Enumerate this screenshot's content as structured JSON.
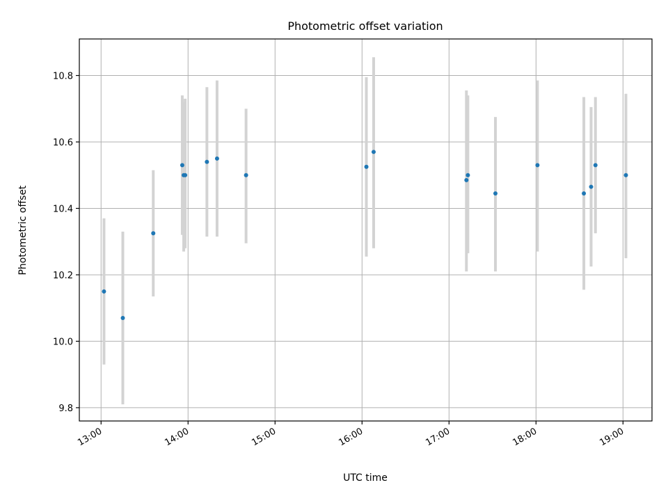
{
  "chart_data": {
    "type": "scatter",
    "title": "Photometric offset variation",
    "xlabel": "UTC time",
    "ylabel": "Photometric offset",
    "x_tick_labels": [
      "13:00",
      "14:00",
      "15:00",
      "16:00",
      "17:00",
      "18:00",
      "19:00"
    ],
    "y_tick_labels": [
      "9.8",
      "10.0",
      "10.2",
      "10.4",
      "10.6",
      "10.8"
    ],
    "xlim": [
      "12:45",
      "19:20"
    ],
    "ylim": [
      9.76,
      10.91
    ],
    "grid": true,
    "point_color": "#1f77b4",
    "errorbar_color": "#d3d3d3",
    "series": [
      {
        "x": [
          "13:02",
          "13:15",
          "13:36",
          "13:56",
          "13:57",
          "13:58",
          "14:13",
          "14:20",
          "14:40",
          "16:03",
          "16:08",
          "17:12",
          "17:13",
          "17:32",
          "18:01",
          "18:33",
          "18:38",
          "18:41",
          "19:02"
        ],
        "y": [
          10.15,
          10.07,
          10.325,
          10.53,
          10.5,
          10.5,
          10.54,
          10.55,
          10.5,
          10.525,
          10.57,
          10.485,
          10.5,
          10.445,
          10.53,
          10.445,
          10.465,
          10.53,
          10.5
        ],
        "yerr_low": [
          9.93,
          9.81,
          10.135,
          10.32,
          10.27,
          10.28,
          10.315,
          10.315,
          10.295,
          10.255,
          10.28,
          10.21,
          10.265,
          10.21,
          10.27,
          10.155,
          10.225,
          10.325,
          10.25
        ],
        "yerr_high": [
          10.37,
          10.33,
          10.515,
          10.74,
          10.72,
          10.73,
          10.765,
          10.785,
          10.7,
          10.795,
          10.855,
          10.755,
          10.74,
          10.675,
          10.785,
          10.735,
          10.705,
          10.735,
          10.745
        ]
      }
    ]
  }
}
